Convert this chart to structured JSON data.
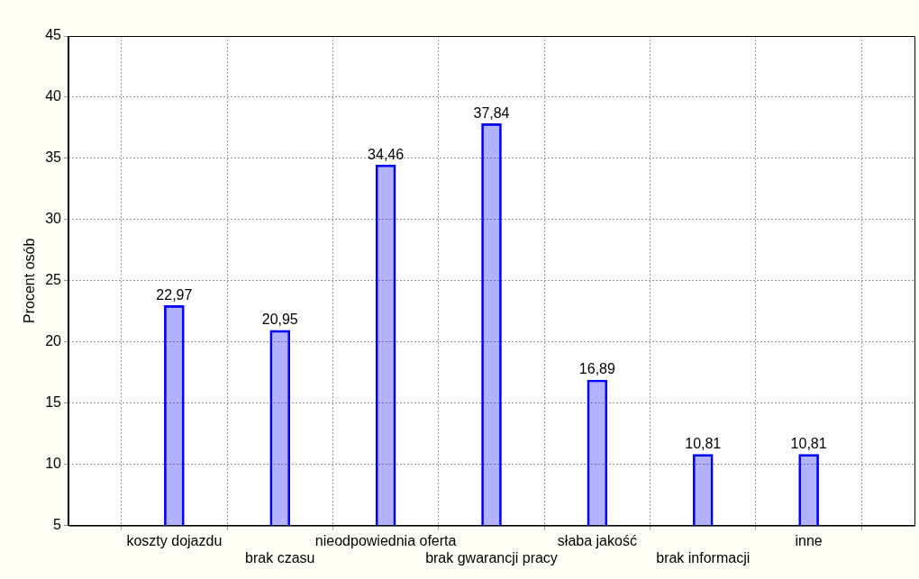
{
  "chart_data": {
    "type": "bar",
    "ylabel": "Procent osób",
    "categories": [
      "koszty dojazdu",
      "brak czasu",
      "nieodpowiednia oferta",
      "brak gwarancji pracy",
      "słaba jakość",
      "brak informacji",
      "inne"
    ],
    "values": [
      22.97,
      20.95,
      34.46,
      37.84,
      16.89,
      10.81,
      10.81
    ],
    "value_labels": [
      "22,97",
      "20,95",
      "34,46",
      "37,84",
      "16,89",
      "10,81",
      "10,81"
    ],
    "color": "#0000ff",
    "ylim": [
      5,
      45
    ],
    "yticks": [
      5,
      10,
      15,
      20,
      25,
      30,
      35,
      40,
      45
    ],
    "grid": true
  }
}
